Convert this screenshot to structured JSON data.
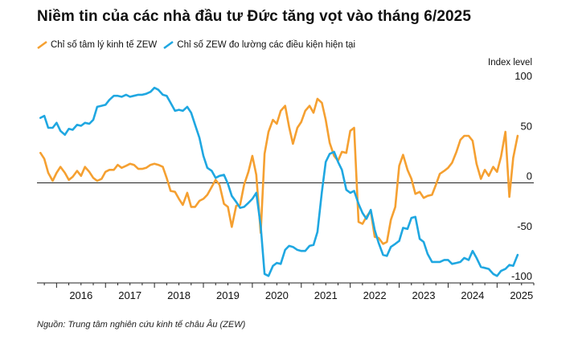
{
  "title": "Niềm tin của các nhà đầu tư Đức tăng vọt vào tháng 6/2025",
  "source": "Nguồn: Trung tâm nghiên cứu kinh tế châu Âu (ZEW)",
  "chart_data": {
    "type": "line",
    "title": "Niềm tin của các nhà đầu tư Đức tăng vọt vào tháng 6/2025",
    "ylabel": "Index level",
    "ylim": [
      -100,
      100
    ],
    "yticks": [
      100,
      50,
      0,
      -50,
      -100
    ],
    "x_tick_labels": [
      "2016",
      "2017",
      "2018",
      "2019",
      "2020",
      "2021",
      "2022",
      "2023",
      "2024",
      "2025"
    ],
    "xlim": [
      2015.6,
      2025.75
    ],
    "legend_position": "top-left",
    "grid": false,
    "series": [
      {
        "name": "Chỉ số tâm lý kinh tế ZEW",
        "color": "#F5A031",
        "points": [
          [
            2015.67,
            30
          ],
          [
            2015.75,
            24
          ],
          [
            2015.83,
            10
          ],
          [
            2015.92,
            2
          ],
          [
            2016.0,
            10
          ],
          [
            2016.08,
            16
          ],
          [
            2016.17,
            10
          ],
          [
            2016.25,
            3
          ],
          [
            2016.33,
            6
          ],
          [
            2016.42,
            12
          ],
          [
            2016.5,
            7
          ],
          [
            2016.58,
            16
          ],
          [
            2016.67,
            11
          ],
          [
            2016.75,
            5
          ],
          [
            2016.83,
            2
          ],
          [
            2016.92,
            4
          ],
          [
            2017.0,
            11
          ],
          [
            2017.08,
            13
          ],
          [
            2017.17,
            13
          ],
          [
            2017.25,
            18
          ],
          [
            2017.33,
            15
          ],
          [
            2017.42,
            17
          ],
          [
            2017.5,
            19
          ],
          [
            2017.58,
            18
          ],
          [
            2017.67,
            14
          ],
          [
            2017.75,
            14
          ],
          [
            2017.83,
            15
          ],
          [
            2017.92,
            18
          ],
          [
            2018.0,
            19
          ],
          [
            2018.08,
            18
          ],
          [
            2018.17,
            16
          ],
          [
            2018.25,
            5
          ],
          [
            2018.33,
            -8
          ],
          [
            2018.42,
            -9
          ],
          [
            2018.5,
            -16
          ],
          [
            2018.58,
            -22
          ],
          [
            2018.67,
            -10
          ],
          [
            2018.75,
            -24
          ],
          [
            2018.83,
            -24
          ],
          [
            2018.92,
            -18
          ],
          [
            2019.0,
            -16
          ],
          [
            2019.08,
            -12
          ],
          [
            2019.17,
            -4
          ],
          [
            2019.25,
            3
          ],
          [
            2019.33,
            -2
          ],
          [
            2019.42,
            -21
          ],
          [
            2019.5,
            -24
          ],
          [
            2019.58,
            -44
          ],
          [
            2019.67,
            -23
          ],
          [
            2019.75,
            -22
          ],
          [
            2019.83,
            -2
          ],
          [
            2019.92,
            11
          ],
          [
            2020.0,
            27
          ],
          [
            2020.08,
            8
          ],
          [
            2020.17,
            -50
          ],
          [
            2020.25,
            29
          ],
          [
            2020.33,
            51
          ],
          [
            2020.42,
            63
          ],
          [
            2020.5,
            59
          ],
          [
            2020.58,
            72
          ],
          [
            2020.67,
            77
          ],
          [
            2020.75,
            56
          ],
          [
            2020.83,
            39
          ],
          [
            2020.92,
            55
          ],
          [
            2021.0,
            61
          ],
          [
            2021.08,
            72
          ],
          [
            2021.17,
            77
          ],
          [
            2021.25,
            70
          ],
          [
            2021.33,
            84
          ],
          [
            2021.42,
            80
          ],
          [
            2021.5,
            63
          ],
          [
            2021.58,
            40
          ],
          [
            2021.67,
            27
          ],
          [
            2021.75,
            22
          ],
          [
            2021.83,
            31
          ],
          [
            2021.92,
            30
          ],
          [
            2022.0,
            52
          ],
          [
            2022.08,
            55
          ],
          [
            2022.17,
            -39
          ],
          [
            2022.25,
            -41
          ],
          [
            2022.33,
            -34
          ],
          [
            2022.42,
            -28
          ],
          [
            2022.5,
            -54
          ],
          [
            2022.58,
            -55
          ],
          [
            2022.67,
            -61
          ],
          [
            2022.75,
            -59
          ],
          [
            2022.83,
            -37
          ],
          [
            2022.92,
            -24
          ],
          [
            2023.0,
            17
          ],
          [
            2023.08,
            28
          ],
          [
            2023.17,
            13
          ],
          [
            2023.25,
            4
          ],
          [
            2023.33,
            -11
          ],
          [
            2023.42,
            -9
          ],
          [
            2023.5,
            -15
          ],
          [
            2023.58,
            -13
          ],
          [
            2023.67,
            -12
          ],
          [
            2023.75,
            -2
          ],
          [
            2023.83,
            9
          ],
          [
            2023.92,
            12
          ],
          [
            2024.0,
            15
          ],
          [
            2024.08,
            20
          ],
          [
            2024.17,
            31
          ],
          [
            2024.25,
            43
          ],
          [
            2024.33,
            47
          ],
          [
            2024.42,
            47
          ],
          [
            2024.5,
            42
          ],
          [
            2024.58,
            19
          ],
          [
            2024.67,
            4
          ],
          [
            2024.75,
            13
          ],
          [
            2024.83,
            7
          ],
          [
            2024.92,
            16
          ],
          [
            2025.0,
            11
          ],
          [
            2025.08,
            26
          ],
          [
            2025.17,
            51
          ],
          [
            2025.25,
            -14
          ],
          [
            2025.33,
            25
          ],
          [
            2025.42,
            47
          ]
        ]
      },
      {
        "name": "Chỉ số ZEW đo lường các điều kiện hiện tại",
        "color": "#1FA7E1",
        "points": [
          [
            2015.67,
            65
          ],
          [
            2015.75,
            67
          ],
          [
            2015.83,
            55
          ],
          [
            2015.92,
            55
          ],
          [
            2016.0,
            60
          ],
          [
            2016.08,
            52
          ],
          [
            2016.17,
            48
          ],
          [
            2016.25,
            54
          ],
          [
            2016.33,
            53
          ],
          [
            2016.42,
            58
          ],
          [
            2016.5,
            57
          ],
          [
            2016.58,
            60
          ],
          [
            2016.67,
            59
          ],
          [
            2016.75,
            63
          ],
          [
            2016.83,
            76
          ],
          [
            2016.92,
            77
          ],
          [
            2017.0,
            78
          ],
          [
            2017.08,
            83
          ],
          [
            2017.17,
            87
          ],
          [
            2017.25,
            87
          ],
          [
            2017.33,
            86
          ],
          [
            2017.42,
            88
          ],
          [
            2017.5,
            86
          ],
          [
            2017.58,
            87
          ],
          [
            2017.67,
            88
          ],
          [
            2017.75,
            88
          ],
          [
            2017.83,
            89
          ],
          [
            2017.92,
            91
          ],
          [
            2018.0,
            95
          ],
          [
            2018.08,
            93
          ],
          [
            2018.17,
            88
          ],
          [
            2018.25,
            87
          ],
          [
            2018.33,
            80
          ],
          [
            2018.42,
            72
          ],
          [
            2018.5,
            73
          ],
          [
            2018.58,
            72
          ],
          [
            2018.67,
            76
          ],
          [
            2018.75,
            70
          ],
          [
            2018.83,
            58
          ],
          [
            2018.92,
            45
          ],
          [
            2019.0,
            27
          ],
          [
            2019.08,
            15
          ],
          [
            2019.17,
            12
          ],
          [
            2019.25,
            5
          ],
          [
            2019.33,
            7
          ],
          [
            2019.42,
            8
          ],
          [
            2019.5,
            -1
          ],
          [
            2019.58,
            -13
          ],
          [
            2019.67,
            -19
          ],
          [
            2019.75,
            -25
          ],
          [
            2019.83,
            -24
          ],
          [
            2019.92,
            -20
          ],
          [
            2020.0,
            -16
          ],
          [
            2020.08,
            -10
          ],
          [
            2020.17,
            -43
          ],
          [
            2020.25,
            -91
          ],
          [
            2020.33,
            -93
          ],
          [
            2020.42,
            -83
          ],
          [
            2020.5,
            -80
          ],
          [
            2020.58,
            -81
          ],
          [
            2020.67,
            -67
          ],
          [
            2020.75,
            -63
          ],
          [
            2020.83,
            -64
          ],
          [
            2020.92,
            -67
          ],
          [
            2021.0,
            -68
          ],
          [
            2021.08,
            -68
          ],
          [
            2021.17,
            -63
          ],
          [
            2021.25,
            -62
          ],
          [
            2021.33,
            -49
          ],
          [
            2021.42,
            -9
          ],
          [
            2021.5,
            21
          ],
          [
            2021.58,
            29
          ],
          [
            2021.67,
            31
          ],
          [
            2021.75,
            21
          ],
          [
            2021.83,
            13
          ],
          [
            2021.92,
            -7
          ],
          [
            2022.0,
            -10
          ],
          [
            2022.08,
            -8
          ],
          [
            2022.17,
            -21
          ],
          [
            2022.25,
            -30
          ],
          [
            2022.33,
            -36
          ],
          [
            2022.42,
            -27
          ],
          [
            2022.5,
            -47
          ],
          [
            2022.58,
            -60
          ],
          [
            2022.67,
            -72
          ],
          [
            2022.75,
            -73
          ],
          [
            2022.83,
            -64
          ],
          [
            2022.92,
            -61
          ],
          [
            2023.0,
            -58
          ],
          [
            2023.08,
            -45
          ],
          [
            2023.17,
            -46
          ],
          [
            2023.25,
            -35
          ],
          [
            2023.33,
            -34
          ],
          [
            2023.42,
            -56
          ],
          [
            2023.5,
            -59
          ],
          [
            2023.58,
            -71
          ],
          [
            2023.67,
            -79
          ],
          [
            2023.75,
            -79
          ],
          [
            2023.83,
            -79
          ],
          [
            2023.92,
            -77
          ],
          [
            2024.0,
            -77
          ],
          [
            2024.08,
            -81
          ],
          [
            2024.17,
            -80
          ],
          [
            2024.25,
            -79
          ],
          [
            2024.33,
            -75
          ],
          [
            2024.42,
            -77
          ],
          [
            2024.5,
            -68
          ],
          [
            2024.58,
            -75
          ],
          [
            2024.67,
            -84
          ],
          [
            2024.75,
            -85
          ],
          [
            2024.83,
            -86
          ],
          [
            2024.92,
            -91
          ],
          [
            2025.0,
            -93
          ],
          [
            2025.08,
            -88
          ],
          [
            2025.17,
            -86
          ],
          [
            2025.25,
            -82
          ],
          [
            2025.33,
            -83
          ],
          [
            2025.42,
            -72
          ]
        ]
      }
    ]
  }
}
